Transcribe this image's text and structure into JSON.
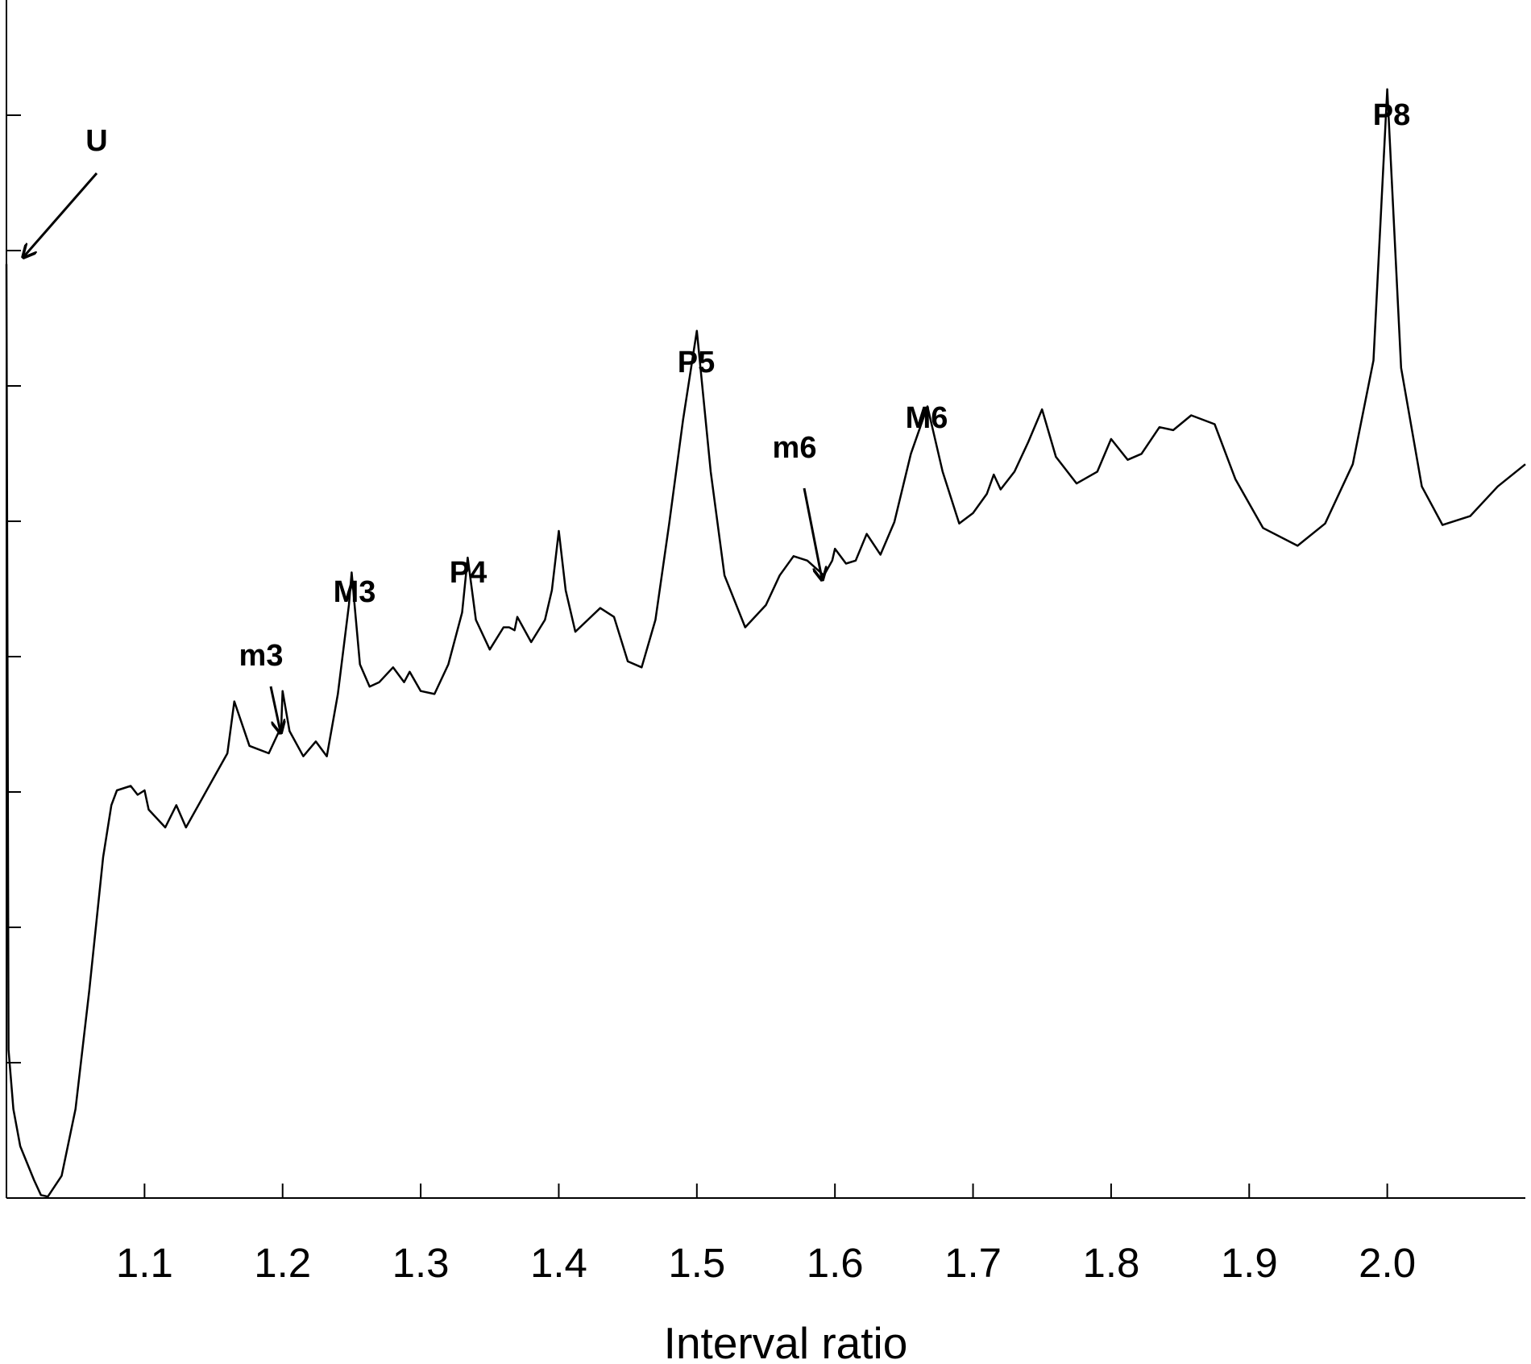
{
  "chart_data": {
    "type": "line",
    "title": "",
    "xlabel": "Interval ratio",
    "ylabel": "",
    "xlim": [
      1.0,
      2.1
    ],
    "grid": false,
    "legend": "none",
    "x_ticks": [
      "1.1",
      "1.2",
      "1.3",
      "1.4",
      "1.5",
      "1.6",
      "1.7",
      "1.8",
      "1.9",
      "2.0"
    ],
    "y_ticks_count": 8,
    "line_color": "#000000",
    "series": [
      {
        "points": [
          [
            1.0,
            6.3
          ],
          [
            1.0015,
            1.0
          ],
          [
            1.005,
            0.6
          ],
          [
            1.01,
            0.35
          ],
          [
            1.02,
            0.12
          ],
          [
            1.025,
            0.02
          ],
          [
            1.03,
            0.01
          ],
          [
            1.04,
            0.15
          ],
          [
            1.05,
            0.6
          ],
          [
            1.06,
            1.4
          ],
          [
            1.07,
            2.3
          ],
          [
            1.076,
            2.65
          ],
          [
            1.08,
            2.75
          ],
          [
            1.09,
            2.78
          ],
          [
            1.095,
            2.72
          ],
          [
            1.1,
            2.75
          ],
          [
            1.103,
            2.62
          ],
          [
            1.115,
            2.5
          ],
          [
            1.123,
            2.65
          ],
          [
            1.13,
            2.5
          ],
          [
            1.16,
            3.0
          ],
          [
            1.165,
            3.35
          ],
          [
            1.176,
            3.05
          ],
          [
            1.19,
            3.0
          ],
          [
            1.199,
            3.18
          ],
          [
            1.2,
            3.42
          ],
          [
            1.205,
            3.15
          ],
          [
            1.215,
            2.98
          ],
          [
            1.224,
            3.08
          ],
          [
            1.232,
            2.98
          ],
          [
            1.24,
            3.4
          ],
          [
            1.248,
            4.0
          ],
          [
            1.25,
            4.22
          ],
          [
            1.256,
            3.6
          ],
          [
            1.263,
            3.45
          ],
          [
            1.27,
            3.48
          ],
          [
            1.28,
            3.58
          ],
          [
            1.288,
            3.48
          ],
          [
            1.292,
            3.55
          ],
          [
            1.3,
            3.42
          ],
          [
            1.31,
            3.4
          ],
          [
            1.32,
            3.6
          ],
          [
            1.33,
            3.95
          ],
          [
            1.334,
            4.32
          ],
          [
            1.34,
            3.9
          ],
          [
            1.35,
            3.7
          ],
          [
            1.36,
            3.85
          ],
          [
            1.364,
            3.85
          ],
          [
            1.368,
            3.83
          ],
          [
            1.37,
            3.92
          ],
          [
            1.38,
            3.75
          ],
          [
            1.39,
            3.9
          ],
          [
            1.395,
            4.1
          ],
          [
            1.4,
            4.5
          ],
          [
            1.405,
            4.1
          ],
          [
            1.412,
            3.82
          ],
          [
            1.43,
            3.98
          ],
          [
            1.44,
            3.92
          ],
          [
            1.45,
            3.62
          ],
          [
            1.46,
            3.58
          ],
          [
            1.47,
            3.9
          ],
          [
            1.48,
            4.55
          ],
          [
            1.49,
            5.25
          ],
          [
            1.5,
            5.85
          ],
          [
            1.51,
            4.9
          ],
          [
            1.52,
            4.2
          ],
          [
            1.535,
            3.85
          ],
          [
            1.55,
            4.0
          ],
          [
            1.56,
            4.2
          ],
          [
            1.57,
            4.33
          ],
          [
            1.58,
            4.3
          ],
          [
            1.592,
            4.2
          ],
          [
            1.598,
            4.3
          ],
          [
            1.6,
            4.38
          ],
          [
            1.608,
            4.28
          ],
          [
            1.615,
            4.3
          ],
          [
            1.623,
            4.48
          ],
          [
            1.633,
            4.34
          ],
          [
            1.643,
            4.56
          ],
          [
            1.655,
            5.02
          ],
          [
            1.667,
            5.34
          ],
          [
            1.678,
            4.9
          ],
          [
            1.69,
            4.55
          ],
          [
            1.7,
            4.62
          ],
          [
            1.71,
            4.75
          ],
          [
            1.715,
            4.88
          ],
          [
            1.72,
            4.78
          ],
          [
            1.73,
            4.9
          ],
          [
            1.74,
            5.1
          ],
          [
            1.75,
            5.32
          ],
          [
            1.76,
            5.0
          ],
          [
            1.775,
            4.82
          ],
          [
            1.79,
            4.9
          ],
          [
            1.8,
            5.12
          ],
          [
            1.812,
            4.98
          ],
          [
            1.822,
            5.02
          ],
          [
            1.835,
            5.2
          ],
          [
            1.845,
            5.18
          ],
          [
            1.858,
            5.28
          ],
          [
            1.875,
            5.22
          ],
          [
            1.89,
            4.85
          ],
          [
            1.91,
            4.52
          ],
          [
            1.935,
            4.4
          ],
          [
            1.955,
            4.55
          ],
          [
            1.975,
            4.95
          ],
          [
            1.99,
            5.65
          ],
          [
            2.0,
            7.48
          ],
          [
            2.01,
            5.6
          ],
          [
            2.025,
            4.8
          ],
          [
            2.04,
            4.54
          ],
          [
            2.06,
            4.6
          ],
          [
            2.08,
            4.8
          ],
          [
            2.1,
            4.95
          ]
        ]
      }
    ],
    "annotations": [
      {
        "label": "U",
        "x": 1.0,
        "arrow": true
      },
      {
        "label": "m3",
        "x": 1.2,
        "arrow": true
      },
      {
        "label": "M3",
        "x": 1.25,
        "arrow": false
      },
      {
        "label": "P4",
        "x": 1.333,
        "arrow": false
      },
      {
        "label": "P5",
        "x": 1.5,
        "arrow": false
      },
      {
        "label": "m6",
        "x": 1.6,
        "arrow": true
      },
      {
        "label": "M6",
        "x": 1.667,
        "arrow": false
      },
      {
        "label": "P8",
        "x": 2.0,
        "arrow": false
      }
    ]
  }
}
